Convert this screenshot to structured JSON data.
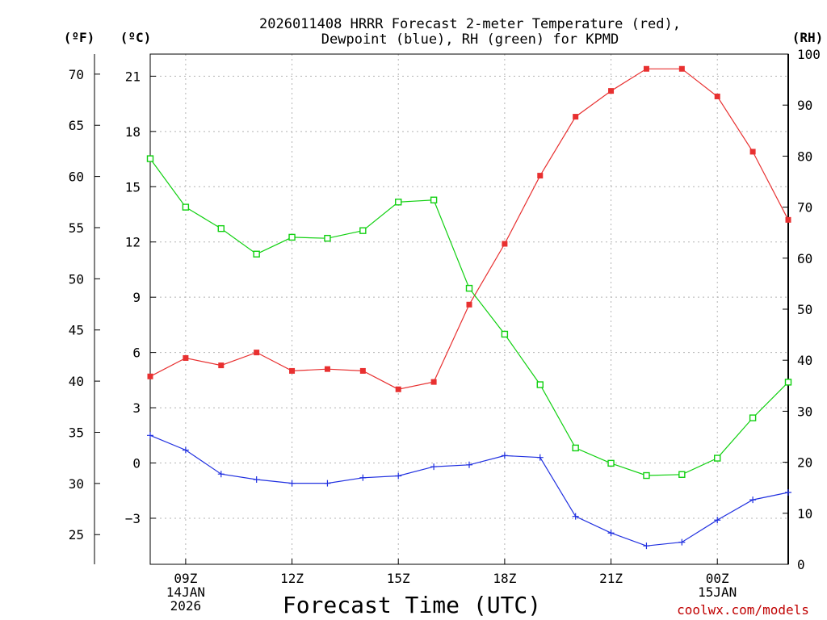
{
  "chart_data": {
    "type": "line",
    "title_line1": "2026011408 HRRR Forecast 2-meter Temperature (red),",
    "title_line2": "Dewpoint (blue), RH (green) for KPMD",
    "xlabel": "Forecast Time (UTC)",
    "credit": "coolwx.com/models",
    "left_axis_f": {
      "label": "(ºF)",
      "ticks": [
        25,
        30,
        35,
        40,
        45,
        50,
        55,
        60,
        65,
        70
      ]
    },
    "left_axis_c": {
      "label": "(ºC)",
      "ylim": [
        -5.5,
        22.2
      ],
      "ticks": [
        -3,
        0,
        3,
        6,
        9,
        12,
        15,
        18,
        21
      ],
      "tick_labels": [
        "−3",
        "0",
        "3",
        "6",
        "9",
        "12",
        "15",
        "18",
        "21"
      ]
    },
    "right_axis_rh": {
      "label": "(RH)",
      "ylim": [
        0,
        100
      ],
      "ticks": [
        0,
        10,
        20,
        30,
        40,
        50,
        60,
        70,
        80,
        90,
        100
      ]
    },
    "x_hours": [
      8,
      9,
      10,
      11,
      12,
      13,
      14,
      15,
      16,
      17,
      18,
      19,
      20,
      21,
      22,
      23,
      24,
      25,
      26
    ],
    "xlim": [
      8,
      26
    ],
    "x_ticks": [
      {
        "hour": 9,
        "lines": [
          "09Z",
          "14JAN",
          "2026"
        ]
      },
      {
        "hour": 12,
        "lines": [
          "12Z"
        ]
      },
      {
        "hour": 15,
        "lines": [
          "15Z"
        ]
      },
      {
        "hour": 18,
        "lines": [
          "18Z"
        ]
      },
      {
        "hour": 21,
        "lines": [
          "21Z"
        ]
      },
      {
        "hour": 24,
        "lines": [
          "00Z",
          "15JAN"
        ]
      }
    ],
    "series": [
      {
        "name": "Temperature",
        "axis": "celsius",
        "color": "#e83030",
        "marker": "filled-square",
        "values": [
          4.7,
          5.7,
          5.3,
          6.0,
          5.0,
          5.1,
          5.0,
          4.0,
          4.4,
          8.6,
          11.9,
          15.6,
          18.8,
          20.2,
          21.4,
          21.4,
          19.9,
          16.9,
          13.2
        ]
      },
      {
        "name": "Dewpoint",
        "axis": "celsius",
        "color": "#2030e0",
        "marker": "plus",
        "values": [
          1.5,
          0.7,
          -0.6,
          -0.9,
          -1.1,
          -1.1,
          -0.8,
          -0.7,
          -0.2,
          -0.1,
          0.4,
          0.3,
          -2.9,
          -3.8,
          -4.5,
          -4.3,
          -3.1,
          -2.0,
          -1.6
        ]
      },
      {
        "name": "RH",
        "axis": "rh",
        "color": "#10d010",
        "marker": "open-square",
        "values": [
          79.5,
          70.0,
          65.8,
          60.8,
          64.1,
          63.9,
          65.4,
          71.0,
          71.4,
          54.1,
          45.1,
          35.2,
          22.8,
          19.8,
          17.4,
          17.6,
          20.8,
          28.7,
          35.7
        ]
      }
    ]
  }
}
